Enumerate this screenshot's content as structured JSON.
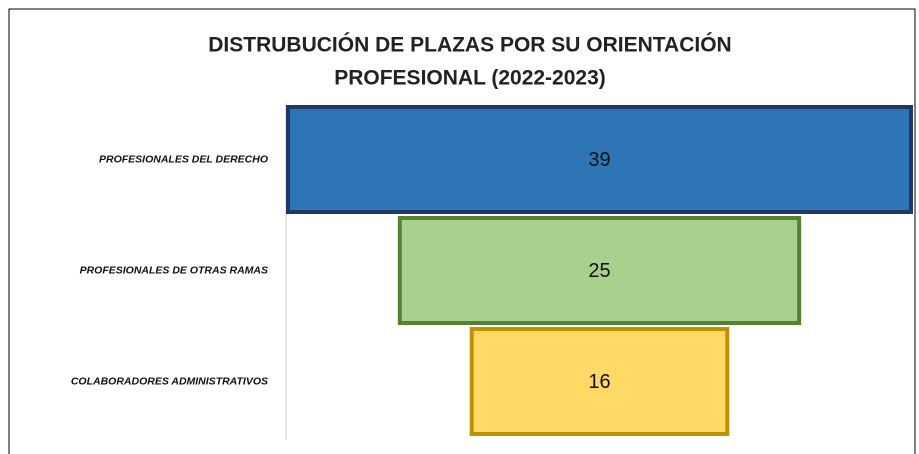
{
  "chart_data": {
    "type": "funnel",
    "title_lines": [
      "DISTRUBUCIÓN DE PLAZAS POR SU ORIENTACIÓN",
      "PROFESIONAL (2022-2023)"
    ],
    "categories": [
      "PROFESIONALES DEL DERECHO",
      "PROFESIONALES DE OTRAS RAMAS",
      "COLABORADORES ADMINISTRATIVOS"
    ],
    "values": [
      39,
      25,
      16
    ],
    "colors": [
      "#2e75b6",
      "#a9d18e",
      "#ffd966"
    ],
    "edge_colors": [
      "#1f3864",
      "#548235",
      "#bf9000"
    ]
  }
}
